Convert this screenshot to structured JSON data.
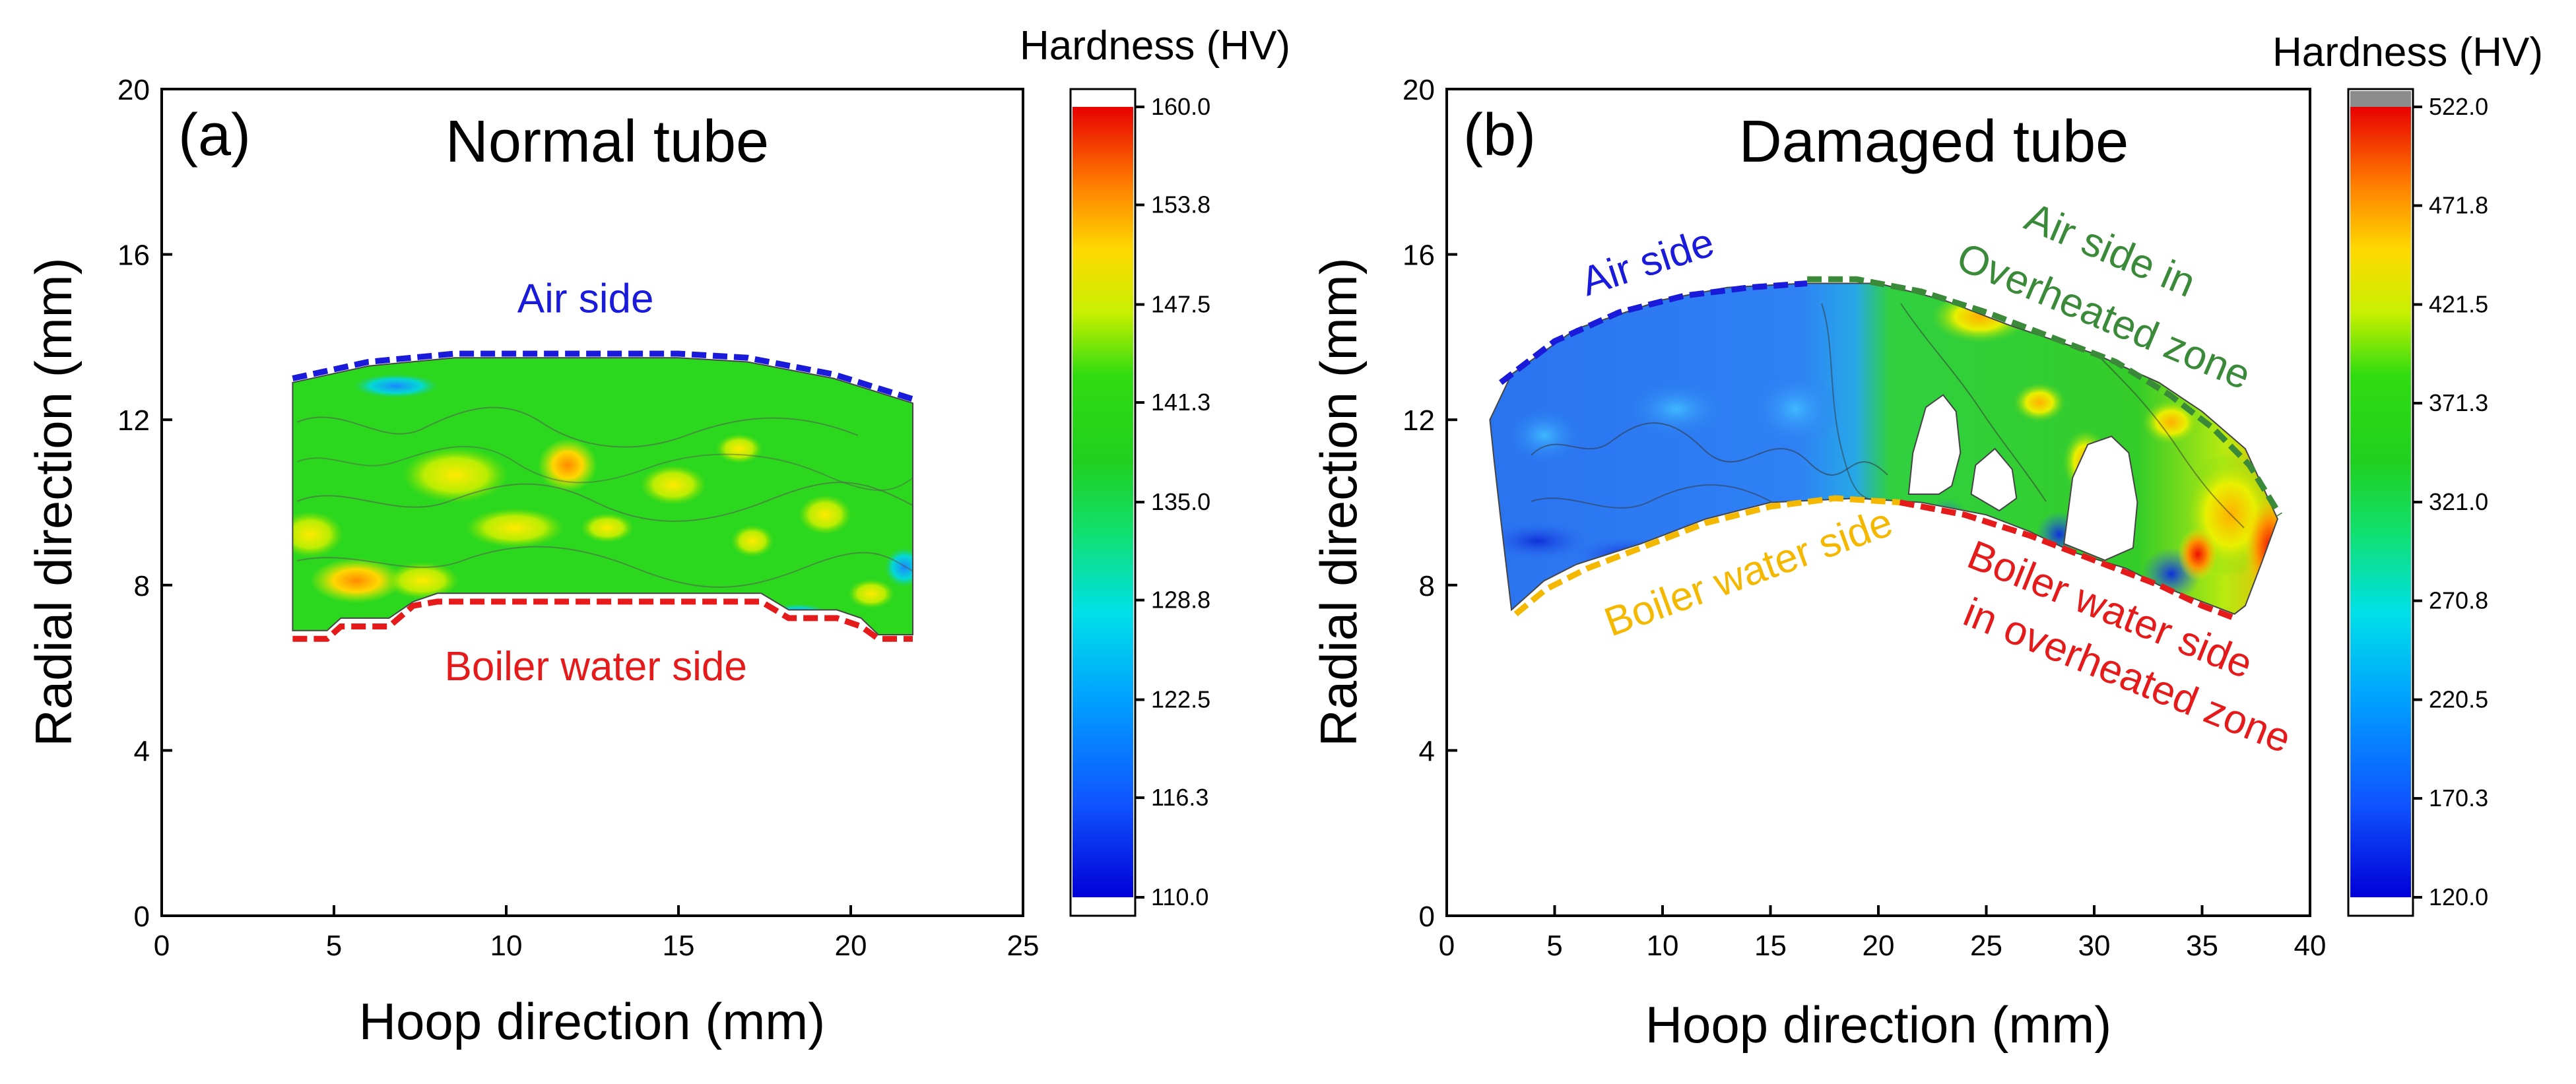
{
  "chart_data": [
    {
      "type": "heatmap",
      "panel_label": "(a)",
      "title": "Normal tube",
      "xlabel": "Hoop direction (mm)",
      "ylabel": "Radial direction (mm)",
      "xlim": [
        0,
        25
      ],
      "ylim": [
        0,
        20
      ],
      "xticks": [
        "0",
        "5",
        "10",
        "15",
        "20",
        "25"
      ],
      "xtick_values": [
        0,
        5,
        10,
        15,
        20,
        25
      ],
      "yticks": [
        "0",
        "4",
        "8",
        "12",
        "16",
        "20"
      ],
      "ytick_values": [
        0,
        4,
        8,
        12,
        16,
        20
      ],
      "colorbar": {
        "title": "Hardness (HV)",
        "min": 110.0,
        "max": 160.0,
        "labels": [
          "160.0",
          "153.8",
          "147.5",
          "141.3",
          "135.0",
          "128.8",
          "122.5",
          "116.3",
          "110.0"
        ],
        "label_values": [
          160.0,
          153.8,
          147.5,
          141.3,
          135.0,
          128.8,
          122.5,
          116.3,
          110.0
        ],
        "over_color": "",
        "under_color": "#ffffff"
      },
      "region": {
        "top": [
          [
            3.8,
            12.9
          ],
          [
            6,
            13.3
          ],
          [
            8.5,
            13.5
          ],
          [
            12,
            13.5
          ],
          [
            15,
            13.5
          ],
          [
            17,
            13.4
          ],
          [
            19.5,
            13
          ],
          [
            21.8,
            12.4
          ]
        ],
        "bottom": [
          [
            21.8,
            6.8
          ],
          [
            20.8,
            6.8
          ],
          [
            20.3,
            7.2
          ],
          [
            19.6,
            7.4
          ],
          [
            18.2,
            7.4
          ],
          [
            17.4,
            7.8
          ],
          [
            14,
            7.8
          ],
          [
            12,
            7.8
          ],
          [
            8,
            7.8
          ],
          [
            7.3,
            7.6
          ],
          [
            6.6,
            7.2
          ],
          [
            5.2,
            7.2
          ],
          [
            4.8,
            6.9
          ],
          [
            3.8,
            6.9
          ]
        ]
      },
      "boundary_curves": [
        {
          "name": "air_side",
          "color": "#1a1adb",
          "points": [
            [
              3.8,
              13.0
            ],
            [
              6,
              13.4
            ],
            [
              8.5,
              13.6
            ],
            [
              12,
              13.6
            ],
            [
              15,
              13.6
            ],
            [
              17,
              13.5
            ],
            [
              19.5,
              13.1
            ],
            [
              21.8,
              12.5
            ]
          ]
        },
        {
          "name": "boiler_water_side",
          "color": "#e51b1b",
          "points": [
            [
              3.8,
              6.7
            ],
            [
              4.8,
              6.7
            ],
            [
              5.2,
              7.0
            ],
            [
              6.6,
              7.0
            ],
            [
              7.3,
              7.5
            ],
            [
              8,
              7.6
            ],
            [
              12,
              7.6
            ],
            [
              14,
              7.6
            ],
            [
              17.4,
              7.6
            ],
            [
              18.2,
              7.2
            ],
            [
              19.6,
              7.2
            ],
            [
              20.3,
              7.0
            ],
            [
              20.8,
              6.7
            ],
            [
              21.8,
              6.7
            ]
          ]
        }
      ],
      "annotations": [
        {
          "text": "Air side",
          "color": "#1a1adb",
          "x": 12.3,
          "y": 14.6,
          "rotate": 0
        },
        {
          "text": "Boiler water side",
          "color": "#e51b1b",
          "x": 12.6,
          "y": 5.7,
          "rotate": 0
        }
      ]
    },
    {
      "type": "heatmap",
      "panel_label": "(b)",
      "title": "Damaged tube",
      "xlabel": "Hoop direction (mm)",
      "ylabel": "Radial direction (mm)",
      "xlim": [
        0,
        40
      ],
      "ylim": [
        0,
        20
      ],
      "xticks": [
        "0",
        "5",
        "10",
        "15",
        "20",
        "25",
        "30",
        "35",
        "40"
      ],
      "xtick_values": [
        0,
        5,
        10,
        15,
        20,
        25,
        30,
        35,
        40
      ],
      "yticks": [
        "0",
        "4",
        "8",
        "12",
        "16",
        "20"
      ],
      "ytick_values": [
        0,
        4,
        8,
        12,
        16,
        20
      ],
      "colorbar": {
        "title": "Hardness (HV)",
        "min": 120.0,
        "max": 522.0,
        "labels": [
          "522.0",
          "471.8",
          "421.5",
          "371.3",
          "321.0",
          "270.8",
          "220.5",
          "170.3",
          "120.0"
        ],
        "label_values": [
          522.0,
          471.8,
          421.5,
          371.3,
          321.0,
          270.8,
          220.5,
          170.3,
          120.0
        ],
        "over_color": "#8c8c8c",
        "under_color": "#ffffff"
      },
      "region": {
        "top": [
          [
            2,
            12.0
          ],
          [
            3,
            13.1
          ],
          [
            6,
            14.2
          ],
          [
            10,
            14.9
          ],
          [
            13,
            15.2
          ],
          [
            16.5,
            15.3
          ],
          [
            20,
            15.3
          ],
          [
            23,
            14.9
          ],
          [
            26,
            14.3
          ],
          [
            30,
            13.6
          ],
          [
            33,
            12.9
          ],
          [
            35,
            12.2
          ],
          [
            37,
            11.3
          ],
          [
            38.5,
            9.6
          ],
          [
            37.8,
            8.6
          ],
          [
            37,
            7.5
          ],
          [
            36.5,
            7.3
          ]
        ],
        "bottom": [
          [
            36.5,
            7.3
          ],
          [
            35,
            7.6
          ],
          [
            33,
            8.0
          ],
          [
            31.5,
            8.4
          ],
          [
            29,
            8.8
          ],
          [
            27,
            9.3
          ],
          [
            25,
            9.7
          ],
          [
            22,
            10.0
          ],
          [
            19,
            10.1
          ],
          [
            15,
            10.0
          ],
          [
            12,
            9.6
          ],
          [
            9,
            9.0
          ],
          [
            6,
            8.5
          ],
          [
            4.5,
            8.1
          ],
          [
            3,
            7.4
          ],
          [
            2.5,
            9.6
          ],
          [
            2.2,
            11.0
          ]
        ]
      },
      "holes": [
        [
          [
            21.4,
            10.2
          ],
          [
            21.6,
            11.2
          ],
          [
            22.2,
            12.3
          ],
          [
            23.0,
            12.6
          ],
          [
            23.6,
            12.2
          ],
          [
            23.8,
            11.2
          ],
          [
            23.4,
            10.4
          ],
          [
            22.8,
            10.2
          ]
        ],
        [
          [
            24.3,
            10.2
          ],
          [
            24.5,
            10.9
          ],
          [
            25.4,
            11.3
          ],
          [
            26.2,
            10.8
          ],
          [
            26.4,
            10.1
          ],
          [
            25.6,
            9.8
          ]
        ],
        [
          [
            28.6,
            9.0
          ],
          [
            29.0,
            10.6
          ],
          [
            29.7,
            11.4
          ],
          [
            30.8,
            11.6
          ],
          [
            31.6,
            11.2
          ],
          [
            32.0,
            10.0
          ],
          [
            31.8,
            8.9
          ],
          [
            30.5,
            8.6
          ]
        ]
      ],
      "boundary_curves": [
        {
          "name": "air_side",
          "color": "#1a1adb",
          "points": [
            [
              2.5,
              12.9
            ],
            [
              5,
              13.9
            ],
            [
              8,
              14.6
            ],
            [
              11,
              15.0
            ],
            [
              14,
              15.2
            ],
            [
              16.7,
              15.3
            ]
          ]
        },
        {
          "name": "air_side_overheated",
          "color": "#3a8a3a",
          "points": [
            [
              16.7,
              15.4
            ],
            [
              19,
              15.4
            ],
            [
              22,
              15.1
            ],
            [
              25,
              14.6
            ],
            [
              28,
              14.0
            ],
            [
              31,
              13.4
            ],
            [
              33.5,
              12.6
            ],
            [
              35.5,
              11.8
            ],
            [
              37.2,
              10.9
            ],
            [
              38.6,
              9.7
            ]
          ]
        },
        {
          "name": "boiler_water_side",
          "color": "#f5b800",
          "points": [
            [
              3.2,
              7.3
            ],
            [
              4.6,
              7.9
            ],
            [
              6.5,
              8.4
            ],
            [
              9,
              8.9
            ],
            [
              12,
              9.5
            ],
            [
              15,
              9.9
            ],
            [
              18,
              10.1
            ],
            [
              21,
              10.0
            ]
          ]
        },
        {
          "name": "boiler_water_side_overheated",
          "color": "#e51b1b",
          "points": [
            [
              21,
              10.0
            ],
            [
              24,
              9.7
            ],
            [
              27,
              9.2
            ],
            [
              30,
              8.6
            ],
            [
              33,
              8.0
            ],
            [
              35,
              7.5
            ],
            [
              36.5,
              7.2
            ]
          ]
        }
      ],
      "annotations": [
        {
          "text": "Air side",
          "color": "#1a1adb",
          "x": 9.5,
          "y": 15.5,
          "rotate": -18
        },
        {
          "text": "Air side in",
          "color": "#3a8a3a",
          "x": 30.5,
          "y": 15.8,
          "rotate": 23
        },
        {
          "text": "Overheated zone",
          "color": "#3a8a3a",
          "x": 30.2,
          "y": 14.2,
          "rotate": 23
        },
        {
          "text": "Boiler water side",
          "color": "#f5b800",
          "x": 14.2,
          "y": 8.0,
          "rotate": -20
        },
        {
          "text": "Boiler water side",
          "color": "#e51b1b",
          "x": 30.5,
          "y": 7.1,
          "rotate": 22
        },
        {
          "text": "in overheated zone",
          "color": "#e51b1b",
          "x": 31.3,
          "y": 5.5,
          "rotate": 22
        }
      ]
    }
  ]
}
